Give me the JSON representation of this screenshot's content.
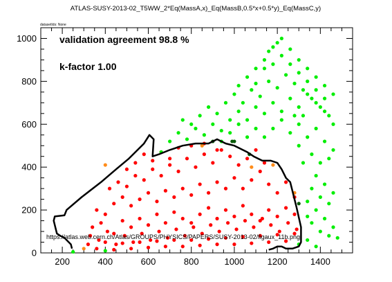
{
  "chart_data": {
    "type": "scatter",
    "title": "ATLAS-SUSY-2013-02_T5WW_2*Eq(MassA,x)_Eq(MassB,0.5*x+0.5*y)_Eq(MassC,y)",
    "dataset_label": "datasetIds: None",
    "annotations": [
      "validation agreement 98.8 %",
      "k-factor 1.00"
    ],
    "url": "https://atlas.web.cern.ch/Atlas/GROUPS/PHYSICS/PAPERS/SUSY-2013-02/figaux_11b.png",
    "xlim": [
      100,
      1550
    ],
    "ylim": [
      0,
      1050
    ],
    "x_ticks": [
      200,
      400,
      600,
      800,
      1000,
      1200,
      1400
    ],
    "y_ticks": [
      0,
      200,
      400,
      600,
      800,
      1000
    ],
    "x_tick_labels": [
      "200",
      "400",
      "600",
      "800",
      "1000",
      "1200",
      "1400"
    ],
    "y_tick_labels": [
      "0",
      "200",
      "400",
      "600",
      "800",
      "1000"
    ],
    "grid": false,
    "colors": {
      "excluded": "#ff0000",
      "allowed": "#00ee00",
      "disagree_excluded": "#ff8c1a",
      "disagree_allowed": "#0a5a0a",
      "contour": "#000000"
    },
    "points": {
      "excluded": [
        [
          340,
          120
        ],
        [
          380,
          140
        ],
        [
          440,
          90
        ],
        [
          480,
          150
        ],
        [
          520,
          120
        ],
        [
          560,
          160
        ],
        [
          600,
          130
        ],
        [
          640,
          180
        ],
        [
          680,
          140
        ],
        [
          720,
          190
        ],
        [
          760,
          160
        ],
        [
          800,
          140
        ],
        [
          840,
          180
        ],
        [
          880,
          210
        ],
        [
          920,
          160
        ],
        [
          960,
          200
        ],
        [
          1000,
          170
        ],
        [
          1040,
          220
        ],
        [
          1080,
          180
        ],
        [
          1120,
          150
        ],
        [
          1160,
          200
        ],
        [
          1200,
          170
        ],
        [
          1240,
          210
        ],
        [
          1280,
          180
        ],
        [
          360,
          200
        ],
        [
          400,
          180
        ],
        [
          440,
          230
        ],
        [
          480,
          260
        ],
        [
          520,
          220
        ],
        [
          560,
          250
        ],
        [
          600,
          280
        ],
        [
          640,
          240
        ],
        [
          680,
          290
        ],
        [
          720,
          260
        ],
        [
          760,
          300
        ],
        [
          800,
          270
        ],
        [
          840,
          320
        ],
        [
          880,
          280
        ],
        [
          920,
          330
        ],
        [
          960,
          300
        ],
        [
          1000,
          350
        ],
        [
          1040,
          300
        ],
        [
          1080,
          340
        ],
        [
          1120,
          380
        ],
        [
          1160,
          320
        ],
        [
          1200,
          280
        ],
        [
          1240,
          330
        ],
        [
          1280,
          260
        ],
        [
          420,
          300
        ],
        [
          460,
          330
        ],
        [
          500,
          310
        ],
        [
          540,
          360
        ],
        [
          580,
          340
        ],
        [
          620,
          390
        ],
        [
          660,
          360
        ],
        [
          700,
          410
        ],
        [
          740,
          380
        ],
        [
          780,
          440
        ],
        [
          820,
          400
        ],
        [
          860,
          460
        ],
        [
          900,
          420
        ],
        [
          940,
          480
        ],
        [
          980,
          450
        ],
        [
          1020,
          410
        ],
        [
          1060,
          440
        ],
        [
          1100,
          480
        ],
        [
          1140,
          420
        ],
        [
          500,
          390
        ],
        [
          540,
          420
        ],
        [
          580,
          460
        ],
        [
          620,
          430
        ],
        [
          660,
          470
        ],
        [
          700,
          440
        ],
        [
          740,
          490
        ],
        [
          800,
          500
        ],
        [
          860,
          510
        ],
        [
          920,
          480
        ],
        [
          330,
          80
        ],
        [
          370,
          60
        ],
        [
          410,
          100
        ],
        [
          450,
          40
        ],
        [
          490,
          80
        ],
        [
          530,
          50
        ],
        [
          570,
          90
        ],
        [
          610,
          60
        ],
        [
          650,
          100
        ],
        [
          690,
          70
        ],
        [
          730,
          110
        ],
        [
          770,
          80
        ],
        [
          810,
          120
        ],
        [
          850,
          90
        ],
        [
          890,
          130
        ],
        [
          930,
          100
        ],
        [
          970,
          140
        ],
        [
          1010,
          110
        ],
        [
          1050,
          150
        ],
        [
          1090,
          120
        ],
        [
          1130,
          160
        ],
        [
          1170,
          130
        ],
        [
          1210,
          100
        ],
        [
          1250,
          140
        ],
        [
          1290,
          110
        ],
        [
          320,
          40
        ],
        [
          360,
          20
        ],
        [
          400,
          50
        ],
        [
          440,
          15
        ],
        [
          480,
          45
        ],
        [
          520,
          20
        ],
        [
          560,
          50
        ],
        [
          600,
          25
        ],
        [
          640,
          55
        ],
        [
          680,
          30
        ],
        [
          720,
          60
        ],
        [
          760,
          30
        ],
        [
          800,
          60
        ],
        [
          840,
          35
        ],
        [
          880,
          65
        ],
        [
          920,
          40
        ],
        [
          960,
          70
        ],
        [
          1000,
          40
        ],
        [
          1040,
          75
        ],
        [
          1080,
          45
        ],
        [
          1120,
          80
        ],
        [
          1160,
          50
        ],
        [
          1200,
          85
        ],
        [
          1240,
          55
        ],
        [
          1280,
          90
        ]
      ],
      "allowed": [
        [
          660,
          470
        ],
        [
          700,
          520
        ],
        [
          740,
          560
        ],
        [
          780,
          530
        ],
        [
          820,
          580
        ],
        [
          860,
          550
        ],
        [
          900,
          600
        ],
        [
          940,
          570
        ],
        [
          980,
          620
        ],
        [
          1020,
          660
        ],
        [
          1060,
          620
        ],
        [
          1100,
          680
        ],
        [
          1140,
          650
        ],
        [
          1180,
          700
        ],
        [
          1220,
          660
        ],
        [
          1260,
          720
        ],
        [
          1300,
          680
        ],
        [
          1340,
          740
        ],
        [
          1380,
          700
        ],
        [
          1420,
          660
        ],
        [
          1460,
          600
        ],
        [
          760,
          620
        ],
        [
          800,
          600
        ],
        [
          840,
          640
        ],
        [
          880,
          680
        ],
        [
          920,
          650
        ],
        [
          960,
          700
        ],
        [
          1000,
          740
        ],
        [
          1040,
          700
        ],
        [
          1080,
          760
        ],
        [
          1120,
          730
        ],
        [
          1160,
          800
        ],
        [
          1200,
          770
        ],
        [
          1240,
          830
        ],
        [
          1280,
          790
        ],
        [
          1320,
          760
        ],
        [
          1360,
          720
        ],
        [
          1400,
          680
        ],
        [
          1440,
          640
        ],
        [
          1020,
          780
        ],
        [
          1060,
          820
        ],
        [
          1100,
          790
        ],
        [
          1140,
          860
        ],
        [
          1180,
          880
        ],
        [
          1220,
          920
        ],
        [
          1260,
          880
        ],
        [
          1300,
          840
        ],
        [
          1340,
          800
        ],
        [
          1380,
          760
        ],
        [
          1420,
          720
        ],
        [
          1160,
          940
        ],
        [
          1200,
          980
        ],
        [
          1220,
          1000
        ],
        [
          1180,
          960
        ],
        [
          1140,
          900
        ],
        [
          1100,
          860
        ],
        [
          1260,
          950
        ],
        [
          1300,
          900
        ],
        [
          1340,
          860
        ],
        [
          1380,
          820
        ],
        [
          1420,
          780
        ],
        [
          1460,
          740
        ],
        [
          1300,
          500
        ],
        [
          1340,
          540
        ],
        [
          1380,
          580
        ],
        [
          1420,
          520
        ],
        [
          1460,
          480
        ],
        [
          1440,
          440
        ],
        [
          1400,
          420
        ],
        [
          1360,
          460
        ],
        [
          1320,
          420
        ],
        [
          1380,
          360
        ],
        [
          1420,
          320
        ],
        [
          1460,
          280
        ],
        [
          1440,
          230
        ],
        [
          1400,
          260
        ],
        [
          1360,
          300
        ],
        [
          1340,
          240
        ],
        [
          1380,
          200
        ],
        [
          1420,
          160
        ],
        [
          1460,
          120
        ],
        [
          1480,
          70
        ],
        [
          1440,
          80
        ],
        [
          1400,
          100
        ],
        [
          1360,
          140
        ],
        [
          1340,
          170
        ],
        [
          1300,
          600
        ],
        [
          1260,
          560
        ],
        [
          1220,
          620
        ],
        [
          1180,
          580
        ],
        [
          1140,
          540
        ],
        [
          1100,
          580
        ],
        [
          1060,
          540
        ],
        [
          1020,
          600
        ],
        [
          980,
          560
        ],
        [
          940,
          520
        ],
        [
          1320,
          640
        ],
        [
          1280,
          640
        ],
        [
          400,
          10
        ],
        [
          250,
          5
        ],
        [
          1340,
          60
        ],
        [
          1300,
          40
        ],
        [
          1380,
          30
        ]
      ],
      "disagree_excluded": [
        [
          400,
          410
        ],
        [
          850,
          500
        ],
        [
          1180,
          410
        ],
        [
          1280,
          280
        ],
        [
          300,
          20
        ],
        [
          1080,
          400
        ]
      ],
      "disagree_allowed": [
        [
          900,
          520
        ],
        [
          990,
          520
        ],
        [
          1070,
          460
        ],
        [
          1300,
          230
        ],
        [
          1000,
          520
        ]
      ]
    },
    "contour": [
      [
        245,
        20
      ],
      [
        240,
        40
      ],
      [
        210,
        70
      ],
      [
        190,
        80
      ],
      [
        175,
        90
      ],
      [
        160,
        150
      ],
      [
        165,
        170
      ],
      [
        210,
        175
      ],
      [
        220,
        200
      ],
      [
        290,
        260
      ],
      [
        380,
        330
      ],
      [
        450,
        390
      ],
      [
        510,
        440
      ],
      [
        580,
        510
      ],
      [
        605,
        550
      ],
      [
        625,
        530
      ],
      [
        620,
        450
      ],
      [
        650,
        460
      ],
      [
        700,
        480
      ],
      [
        760,
        500
      ],
      [
        820,
        510
      ],
      [
        880,
        510
      ],
      [
        920,
        530
      ],
      [
        960,
        510
      ],
      [
        1000,
        500
      ],
      [
        1060,
        470
      ],
      [
        1090,
        450
      ],
      [
        1130,
        430
      ],
      [
        1170,
        430
      ],
      [
        1200,
        420
      ],
      [
        1220,
        390
      ],
      [
        1240,
        350
      ],
      [
        1260,
        330
      ],
      [
        1280,
        250
      ],
      [
        1290,
        210
      ],
      [
        1310,
        120
      ],
      [
        1310,
        50
      ],
      [
        1300,
        30
      ],
      [
        1270,
        20
      ],
      [
        1240,
        20
      ],
      [
        1220,
        30
      ],
      [
        1200,
        30
      ],
      [
        1180,
        20
      ],
      [
        1160,
        15
      ]
    ]
  }
}
